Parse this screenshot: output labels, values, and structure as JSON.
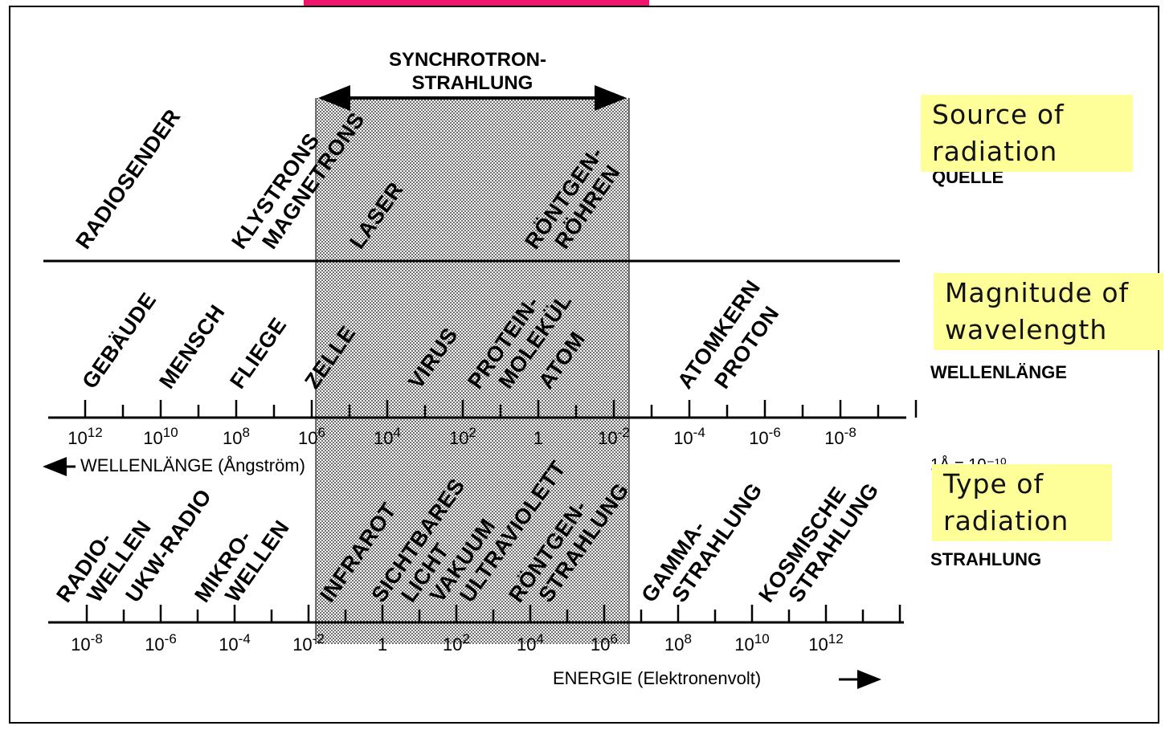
{
  "colors": {
    "top_bar": "#f0146e",
    "note_bg": "#ffff99",
    "band_fill": "#bdbdbd"
  },
  "synchrotron": {
    "line1": "SYNCHROTRON-",
    "line2": "STRAHLUNG"
  },
  "sources": {
    "radiosender": "RADIOSENDER",
    "klystrons": "KLYSTRONS",
    "magnetrons": "MAGNETRONS",
    "laser": "LASER",
    "roentgen": "RÖNTGEN-",
    "roehren": "RÖHREN"
  },
  "right_labels": {
    "quelle": "QUELLE",
    "wellenlaenge": "WELLENLÄNGE",
    "strahlung": "STRAHLUNG"
  },
  "wavelength_objects": {
    "gebaeude": "GEBÄUDE",
    "mensch": "MENSCH",
    "fliege": "FLIEGE",
    "zelle": "ZELLE",
    "virus": "VIRUS",
    "protein": "PROTEIN-",
    "molekuel": "MOLEKÜL",
    "atom": "ATOM",
    "atomkern": "ATOMKERN",
    "proton": "PROTON"
  },
  "wavelength_axis": {
    "ticks": [
      {
        "base": "10",
        "exp": "12"
      },
      {
        "base": "10",
        "exp": "10"
      },
      {
        "base": "10",
        "exp": "8"
      },
      {
        "base": "10",
        "exp": "6"
      },
      {
        "base": "10",
        "exp": "4"
      },
      {
        "base": "10",
        "exp": "2"
      },
      {
        "base": "1",
        "exp": ""
      },
      {
        "base": "10",
        "exp": "-2"
      },
      {
        "base": "10",
        "exp": "-4"
      },
      {
        "base": "10",
        "exp": "-6"
      },
      {
        "base": "10",
        "exp": "-8"
      }
    ],
    "label": "WELLENLÄNGE (Ångström)",
    "unit_note": "1Å = 10⁻¹⁰"
  },
  "radiation_types": {
    "radio": "RADIO-",
    "wellen": "WELLEN",
    "ukw": "UKW-RADIO",
    "mikro": "MIKRO-",
    "mikrowellen": "WELLEN",
    "infrarot": "INFRAROT",
    "sichtbares": "SICHTBARES",
    "licht": "LICHT",
    "vakuum": "VAKUUM",
    "ultraviolett": "ULTRAVIOLETT",
    "roentgen": "RÖNTGEN-",
    "roentgenstrahlung": "STRAHLUNG",
    "gamma": "GAMMA-",
    "gammastrahlung": "STRAHLUNG",
    "kosmische": "KOSMISCHE",
    "kosmischestrahlung": "STRAHLUNG"
  },
  "energy_axis": {
    "ticks": [
      {
        "base": "10",
        "exp": "-8"
      },
      {
        "base": "10",
        "exp": "-6"
      },
      {
        "base": "10",
        "exp": "-4"
      },
      {
        "base": "10",
        "exp": "-2"
      },
      {
        "base": "1",
        "exp": ""
      },
      {
        "base": "10",
        "exp": "2"
      },
      {
        "base": "10",
        "exp": "4"
      },
      {
        "base": "10",
        "exp": "6"
      },
      {
        "base": "10",
        "exp": "8"
      },
      {
        "base": "10",
        "exp": "10"
      },
      {
        "base": "10",
        "exp": "12"
      }
    ],
    "label": "ENERGIE (Elektronenvolt)"
  },
  "notes": {
    "source": [
      "Source of",
      "radiation"
    ],
    "magnitude": [
      "Magnitude of",
      "wavelength"
    ],
    "type": [
      "Type of",
      "radiation"
    ]
  }
}
